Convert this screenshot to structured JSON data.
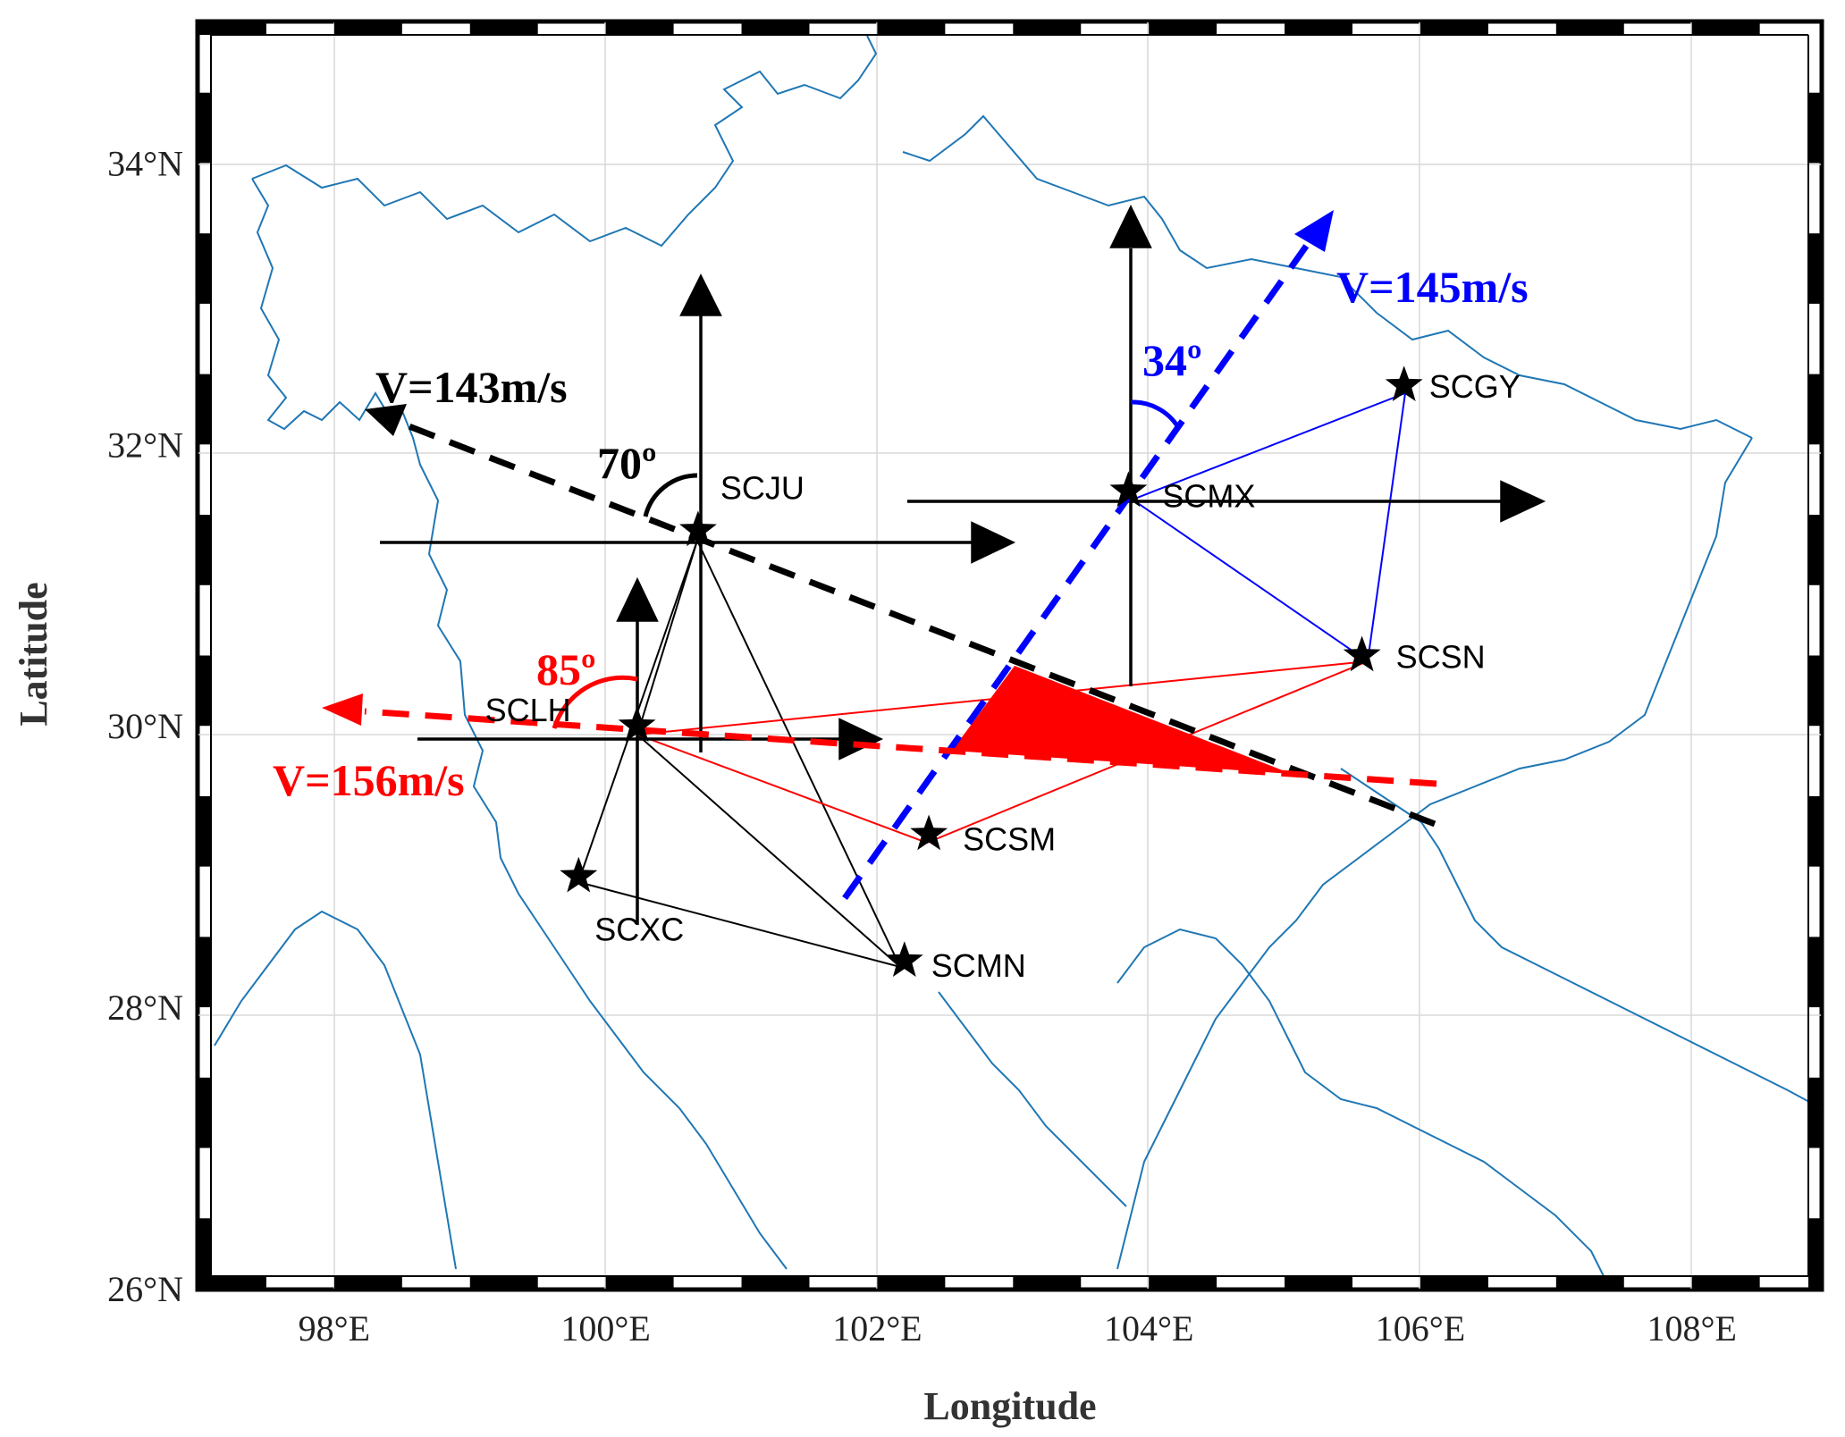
{
  "axes": {
    "x_title": "Longitude",
    "y_title": "Latitude",
    "x_ticks": [
      {
        "value": 98,
        "label": "98°E"
      },
      {
        "value": 100,
        "label": "100°E"
      },
      {
        "value": 102,
        "label": "102°E"
      },
      {
        "value": 104,
        "label": "104°E"
      },
      {
        "value": 106,
        "label": "106°E"
      },
      {
        "value": 108,
        "label": "108°E"
      }
    ],
    "y_ticks": [
      {
        "value": 26,
        "label": "26°N"
      },
      {
        "value": 28,
        "label": "28°N"
      },
      {
        "value": 30,
        "label": "30°N"
      },
      {
        "value": 32,
        "label": "32°N"
      },
      {
        "value": 34,
        "label": "34°N"
      }
    ],
    "x_range": [
      97.0,
      108.95
    ],
    "y_range": [
      26.0,
      35.0
    ]
  },
  "stations": [
    {
      "code": "SCJU",
      "lon": 100.68,
      "lat": 31.39
    },
    {
      "code": "SCLH",
      "lon": 100.23,
      "lat": 30.0
    },
    {
      "code": "SCXC",
      "lon": 99.8,
      "lat": 28.93
    },
    {
      "code": "SCMN",
      "lon": 102.2,
      "lat": 28.33
    },
    {
      "code": "SCSM",
      "lon": 102.38,
      "lat": 29.23
    },
    {
      "code": "SCMX",
      "lon": 103.85,
      "lat": 31.67
    },
    {
      "code": "SCGY",
      "lon": 105.88,
      "lat": 32.42
    },
    {
      "code": "SCSN",
      "lon": 105.57,
      "lat": 30.5
    }
  ],
  "velocities": [
    {
      "label": "V=143m/s",
      "color": "#000000"
    },
    {
      "label": "V=145m/s",
      "color": "#0000ff"
    },
    {
      "label": "V=156m/s",
      "color": "#ff0000"
    }
  ],
  "angles": [
    {
      "label": "70º",
      "color": "#000000"
    },
    {
      "label": "34º",
      "color": "#0000ff"
    },
    {
      "label": "85º",
      "color": "#ff0000"
    }
  ],
  "colors": {
    "border_line": "#1f77b4",
    "grid": "#d9d9d9"
  }
}
